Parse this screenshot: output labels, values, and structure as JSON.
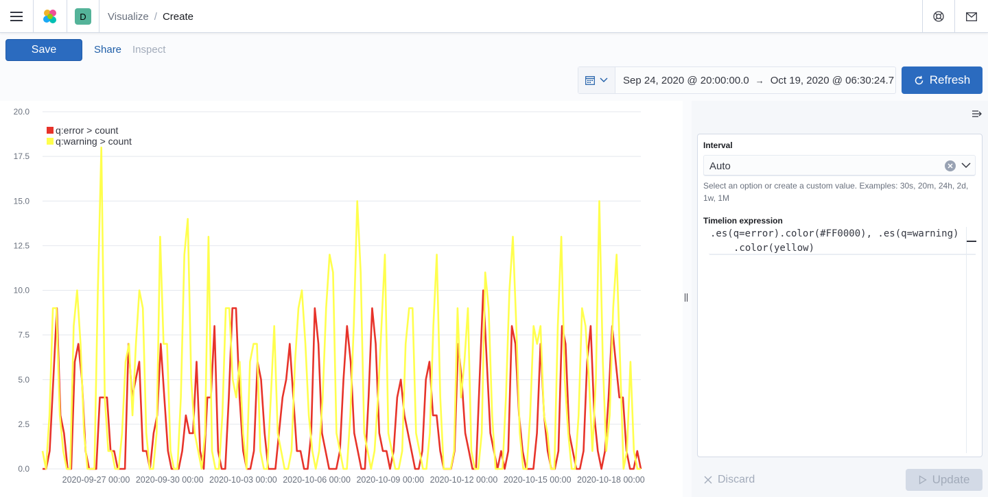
{
  "header": {
    "avatar_letter": "D",
    "breadcrumbs": [
      "Visualize",
      "Create"
    ],
    "breadcrumb_separator": "/"
  },
  "toolbar": {
    "save_label": "Save",
    "share_label": "Share",
    "inspect_label": "Inspect"
  },
  "time": {
    "start": "Sep 24, 2020 @ 20:00:00.0",
    "end": "Oct 19, 2020 @ 06:30:24.7",
    "arrow": "→",
    "refresh_label": "Refresh"
  },
  "editor": {
    "interval_label": "Interval",
    "interval_value": "Auto",
    "interval_help": "Select an option or create a custom value. Examples: 30s, 20m, 24h, 2d, 1w, 1M",
    "expression_label": "Timelion expression",
    "expression_line1": ".es(q=error).color(#FF0000), .es(q=warning)",
    "expression_line2": ".color(yellow)",
    "discard_label": "Discard",
    "update_label": "Update"
  },
  "colors": {
    "primary": "#2b6bbf",
    "error_series": "#e7332a",
    "warning_series": "#ffff4d"
  },
  "chart_data": {
    "type": "line",
    "ylim": [
      0,
      20
    ],
    "yticks": [
      "0.0",
      "2.5",
      "5.0",
      "7.5",
      "10.0",
      "12.5",
      "15.0",
      "17.5",
      "20.0"
    ],
    "xticks": [
      "2020-09-27 00:00",
      "2020-09-30 00:00",
      "2020-10-03 00:00",
      "2020-10-06 00:00",
      "2020-10-09 00:00",
      "2020-10-12 00:00",
      "2020-10-15 00:00",
      "2020-10-18 00:00"
    ],
    "legend_position": "top-left",
    "series": [
      {
        "name": "q:error > count",
        "color": "#e7332a",
        "values": [
          0,
          0,
          1,
          5,
          9,
          3,
          2,
          0,
          0,
          6,
          7,
          5,
          1,
          0,
          0,
          0,
          4,
          4,
          4,
          1,
          1,
          0,
          0,
          0,
          7,
          4,
          5,
          6,
          1,
          1,
          0,
          2,
          3,
          7,
          4,
          1,
          0,
          0,
          0,
          1,
          3,
          2,
          2,
          6,
          1,
          0,
          4,
          4,
          8,
          1,
          0,
          0,
          4,
          9,
          9,
          4,
          1,
          0,
          0,
          1,
          6,
          5,
          2,
          0,
          0,
          0,
          2,
          4,
          5,
          7,
          4,
          1,
          1,
          0,
          0,
          2,
          9,
          7,
          2,
          1,
          0,
          0,
          0,
          1,
          5,
          8,
          6,
          2,
          1,
          0,
          0,
          4,
          9,
          7,
          2,
          1,
          1,
          0,
          1,
          4,
          5,
          3,
          2,
          1,
          0,
          0,
          1,
          5,
          6,
          3,
          3,
          1,
          0,
          0,
          0,
          1,
          7,
          5,
          2,
          1,
          0,
          0,
          5,
          10,
          6,
          2,
          1,
          0,
          1,
          0,
          1,
          8,
          7,
          3,
          1,
          0,
          0,
          0,
          2,
          7,
          3,
          1,
          0,
          0,
          1,
          8,
          7,
          2,
          1,
          0,
          0,
          1,
          6,
          8,
          3,
          1,
          0,
          1,
          4,
          8,
          6,
          4,
          4,
          1,
          0,
          0,
          1,
          0
        ]
      },
      {
        "name": "q:warning > count",
        "color": "#ffff4d",
        "values": [
          1,
          0,
          3,
          9,
          9,
          3,
          1,
          0,
          0,
          8,
          10,
          7,
          2,
          0,
          0,
          0,
          10,
          18,
          4,
          1,
          1,
          0,
          0,
          2,
          6,
          7,
          3,
          7,
          10,
          9,
          2,
          0,
          0,
          2,
          13,
          7,
          7,
          1,
          0,
          0,
          4,
          12,
          14,
          5,
          2,
          1,
          0,
          2,
          13,
          1,
          0,
          0,
          3,
          9,
          9,
          5,
          4,
          6,
          2,
          0,
          6,
          7,
          7,
          1,
          0,
          0,
          4,
          8,
          2,
          1,
          0,
          0,
          1,
          6,
          9,
          10,
          7,
          3,
          1,
          0,
          1,
          4,
          9,
          12,
          11,
          2,
          1,
          0,
          0,
          3,
          8,
          15,
          11,
          2,
          1,
          0,
          1,
          4,
          8,
          12,
          2,
          1,
          0,
          0,
          1,
          7,
          9,
          9,
          2,
          1,
          0,
          0,
          2,
          8,
          12,
          4,
          0,
          0,
          0,
          1,
          9,
          4,
          6,
          9,
          1,
          0,
          0,
          2,
          11,
          9,
          3,
          0,
          0,
          0,
          4,
          10,
          13,
          8,
          2,
          0,
          0,
          3,
          8,
          7,
          8,
          3,
          2,
          0,
          0,
          8,
          13,
          5,
          2,
          0,
          0,
          3,
          9,
          8,
          5,
          1,
          5,
          15,
          6,
          1,
          3,
          9,
          12,
          6,
          0,
          1,
          6,
          1,
          0,
          0
        ]
      }
    ]
  }
}
